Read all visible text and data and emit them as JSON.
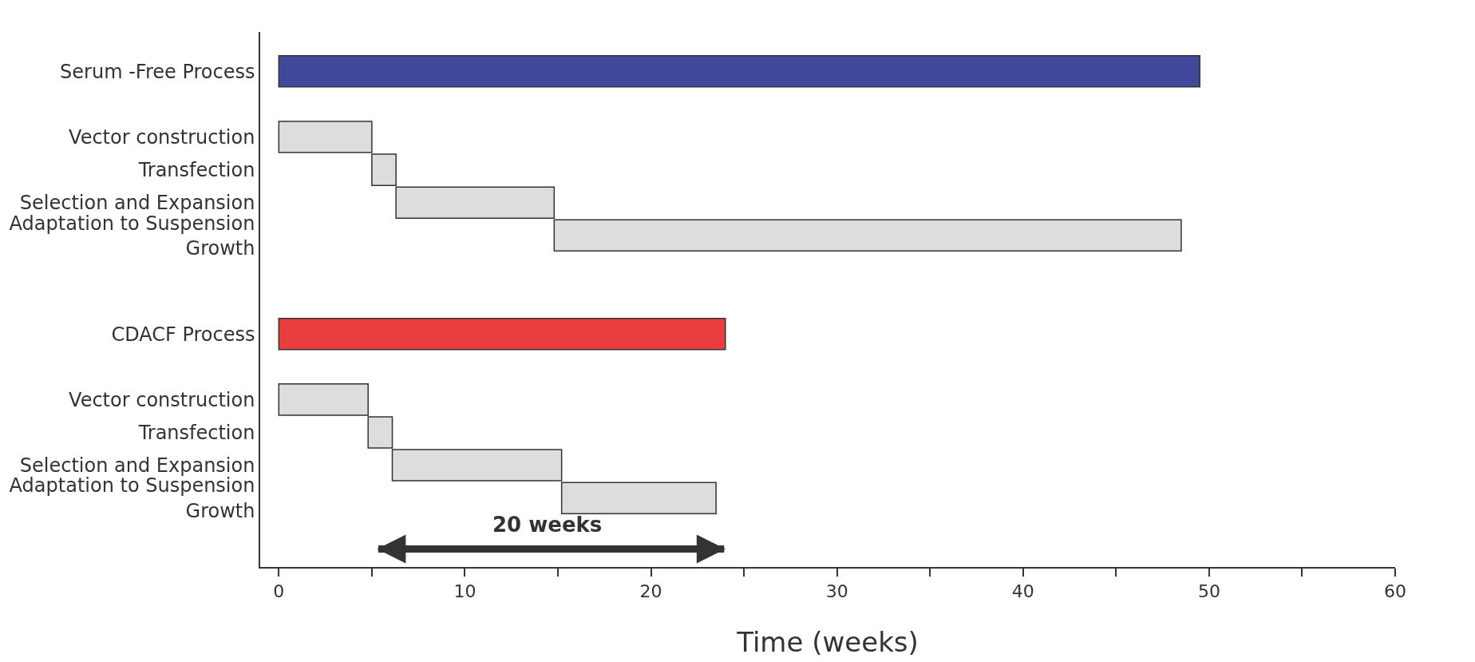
{
  "chart_data": {
    "type": "bar",
    "orientation": "horizontal",
    "xlabel": "Time (weeks)",
    "categories": [
      "Serum -Free Process",
      null,
      "Vector construction",
      "Transfection",
      "Selection and Expansion",
      "Adaptation to Suspension Growth",
      null,
      null,
      "CDACF Process",
      null,
      "Vector construction",
      "Transfection",
      "Selection and Expansion",
      "Adaptation to Suspension Growth",
      null
    ],
    "values": [
      49.5,
      null,
      5,
      1.3,
      8.5,
      33.7,
      null,
      null,
      24,
      null,
      4.8,
      1.3,
      9.1,
      8.3,
      null
    ],
    "base": [
      0,
      null,
      0,
      5,
      6.3,
      14.8,
      null,
      null,
      0,
      null,
      0,
      4.8,
      6.1,
      15.2,
      null
    ],
    "colors": [
      "#414a9a",
      null,
      "#dcdddf",
      "#dcdddf",
      "#dcdddf",
      "#dcdddf",
      null,
      null,
      "#e83e3e",
      null,
      "#dcdddf",
      "#dcdddf",
      "#dcdddf",
      "#dcdddf",
      null
    ],
    "xlim": [
      -1,
      60
    ],
    "xticks": [
      0,
      {
        "value": 5,
        "label": null
      },
      10,
      {
        "value": 15,
        "label": null
      },
      20,
      {
        "value": 25,
        "label": null
      },
      30,
      {
        "value": 35,
        "label": null
      },
      40,
      {
        "value": 45,
        "label": null
      },
      50,
      {
        "value": 55,
        "label": null
      },
      60
    ],
    "annotations": [
      "20 weeks"
    ]
  }
}
